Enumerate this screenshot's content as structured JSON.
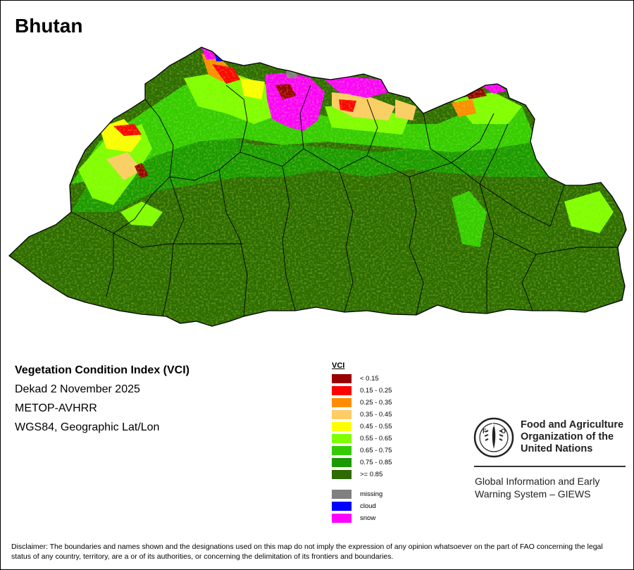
{
  "title": "Bhutan",
  "info": {
    "index_name": "Vegetation Condition Index (VCI)",
    "period": "Dekad 2 November 2025",
    "sensor": "METOP-AVHRR",
    "projection": "WGS84, Geographic Lat/Lon"
  },
  "legend": {
    "title": "VCI",
    "classes": [
      {
        "label": "< 0.15",
        "color": "#990000"
      },
      {
        "label": "0.15 - 0.25",
        "color": "#ff0000"
      },
      {
        "label": "0.25 - 0.35",
        "color": "#ff8c00"
      },
      {
        "label": "0.35 - 0.45",
        "color": "#ffcc66"
      },
      {
        "label": "0.45 - 0.55",
        "color": "#ffff00"
      },
      {
        "label": "0.55 - 0.65",
        "color": "#80ff00"
      },
      {
        "label": "0.65 - 0.75",
        "color": "#33cc00"
      },
      {
        "label": "0.75 - 0.85",
        "color": "#1a9900"
      },
      {
        "label": ">= 0.85",
        "color": "#2e6b00"
      }
    ],
    "special": [
      {
        "label": "missing",
        "color": "#808080"
      },
      {
        "label": "cloud",
        "color": "#0000ff"
      },
      {
        "label": "snow",
        "color": "#ff00ff"
      }
    ]
  },
  "organization": {
    "logo_text": "FAO",
    "logo_motto": "FIAT PANIS",
    "name_line1": "Food and Agriculture",
    "name_line2": "Organization of the",
    "name_line3": "United Nations",
    "system_line1": "Global Information and Early",
    "system_line2": "Warning System – GIEWS"
  },
  "disclaimer": "Disclaimer: The boundaries and names shown and the designations used on this map do not imply the expression of any opinion whatsoever on the part of FAO concerning the legal status of any country, territory, are a or of its authorities, or concerning the delimitation of its frontiers and boundaries."
}
